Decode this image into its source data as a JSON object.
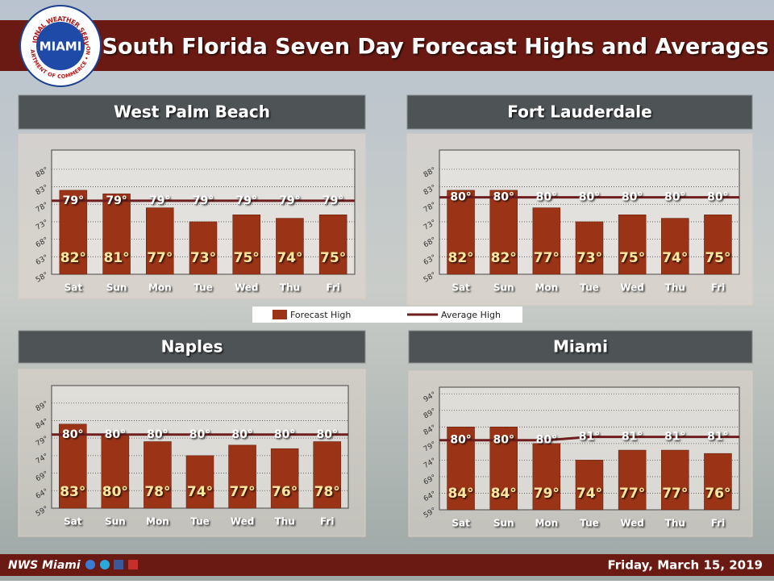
{
  "header": {
    "title": "South Florida Seven Day Forecast Highs and Averages",
    "logo_top": "NATIONAL WEATHER SERVICE",
    "logo_center": "MIAMI",
    "logo_bottom": "DEPARTMENT OF COMMERCE • NOAA"
  },
  "footer": {
    "left": "NWS Miami",
    "right": "Friday, March 15, 2019"
  },
  "chart_data": [
    {
      "type": "bar",
      "title": "West Palm Beach",
      "categories": [
        "Sat",
        "Sun",
        "Mon",
        "Tue",
        "Wed",
        "Thu",
        "Fri"
      ],
      "series": [
        {
          "name": "Forecast High",
          "color": "#9b3416",
          "values": [
            82,
            81,
            77,
            73,
            75,
            74,
            75
          ],
          "value_labels": [
            "82°",
            "81°",
            "77°",
            "73°",
            "75°",
            "74°",
            "75°"
          ]
        },
        {
          "name": "Average High",
          "color": "#6e1e1e",
          "type": "line",
          "values": [
            79,
            79,
            79,
            79,
            79,
            79,
            79
          ],
          "value_labels": [
            "79°",
            "79°",
            "79°",
            "79°",
            "79°",
            "79°",
            "79°"
          ]
        }
      ],
      "ylim": [
        58,
        93.5
      ],
      "yticks": [
        {
          "value": 58,
          "label": "58°"
        },
        {
          "value": 63,
          "label": "63°"
        },
        {
          "value": 68,
          "label": "68°"
        },
        {
          "value": 73,
          "label": "73°"
        },
        {
          "value": 78,
          "label": "78°"
        },
        {
          "value": 83,
          "label": "83°"
        },
        {
          "value": 88,
          "label": "88°"
        }
      ],
      "grid": true
    },
    {
      "type": "bar",
      "title": "Fort Lauderdale",
      "categories": [
        "Sat",
        "Sun",
        "Mon",
        "Tue",
        "Wed",
        "Thu",
        "Fri"
      ],
      "series": [
        {
          "name": "Forecast High",
          "color": "#9b3416",
          "values": [
            82,
            82,
            77,
            73,
            75,
            74,
            75
          ],
          "value_labels": [
            "82°",
            "82°",
            "77°",
            "73°",
            "75°",
            "74°",
            "75°"
          ]
        },
        {
          "name": "Average High",
          "color": "#6e1e1e",
          "type": "line",
          "values": [
            80,
            80,
            80,
            80,
            80,
            80,
            80
          ],
          "value_labels": [
            "80°",
            "80°",
            "80°",
            "80°",
            "80°",
            "80°",
            "80°"
          ]
        }
      ],
      "ylim": [
        58,
        93.5
      ],
      "yticks": [
        {
          "value": 58,
          "label": "58°"
        },
        {
          "value": 63,
          "label": "63°"
        },
        {
          "value": 68,
          "label": "68°"
        },
        {
          "value": 73,
          "label": "73°"
        },
        {
          "value": 78,
          "label": "78°"
        },
        {
          "value": 83,
          "label": "83°"
        },
        {
          "value": 88,
          "label": "88°"
        }
      ],
      "grid": true
    },
    {
      "type": "bar",
      "title": "Naples",
      "categories": [
        "Sat",
        "Sun",
        "Mon",
        "Tue",
        "Wed",
        "Thu",
        "Fri"
      ],
      "series": [
        {
          "name": "Forecast High",
          "color": "#9b3416",
          "values": [
            83,
            80,
            78,
            74,
            77,
            76,
            78
          ],
          "value_labels": [
            "83°",
            "80°",
            "78°",
            "74°",
            "77°",
            "76°",
            "78°"
          ]
        },
        {
          "name": "Average High",
          "color": "#6e1e1e",
          "type": "line",
          "values": [
            80,
            80,
            80,
            80,
            80,
            80,
            80
          ],
          "value_labels": [
            "80°",
            "80°",
            "80°",
            "80°",
            "80°",
            "80°",
            "80°"
          ]
        }
      ],
      "ylim": [
        59,
        94
      ],
      "yticks": [
        {
          "value": 59,
          "label": "59°"
        },
        {
          "value": 64,
          "label": "64°"
        },
        {
          "value": 69,
          "label": "69°"
        },
        {
          "value": 74,
          "label": "74°"
        },
        {
          "value": 79,
          "label": "79°"
        },
        {
          "value": 84,
          "label": "84°"
        },
        {
          "value": 89,
          "label": "89°"
        }
      ],
      "grid": true
    },
    {
      "type": "bar",
      "title": "Miami",
      "categories": [
        "Sat",
        "Sun",
        "Mon",
        "Tue",
        "Wed",
        "Thu",
        "Fri"
      ],
      "series": [
        {
          "name": "Forecast High",
          "color": "#9b3416",
          "values": [
            84,
            84,
            79,
            74,
            77,
            77,
            76
          ],
          "value_labels": [
            "84°",
            "84°",
            "79°",
            "74°",
            "77°",
            "77°",
            "76°"
          ]
        },
        {
          "name": "Average High",
          "color": "#6e1e1e",
          "type": "line",
          "values": [
            80,
            80,
            80,
            81,
            81,
            81,
            81
          ],
          "value_labels": [
            "80°",
            "80°",
            "80°",
            "81°",
            "81°",
            "81°",
            "81°"
          ]
        }
      ],
      "ylim": [
        59,
        96
      ],
      "yticks": [
        {
          "value": 59,
          "label": "59°"
        },
        {
          "value": 64,
          "label": "64°"
        },
        {
          "value": 69,
          "label": "69°"
        },
        {
          "value": 74,
          "label": "74°"
        },
        {
          "value": 79,
          "label": "79°"
        },
        {
          "value": 84,
          "label": "84°"
        },
        {
          "value": 89,
          "label": "89°"
        },
        {
          "value": 94,
          "label": "94°"
        }
      ],
      "grid": true
    }
  ]
}
